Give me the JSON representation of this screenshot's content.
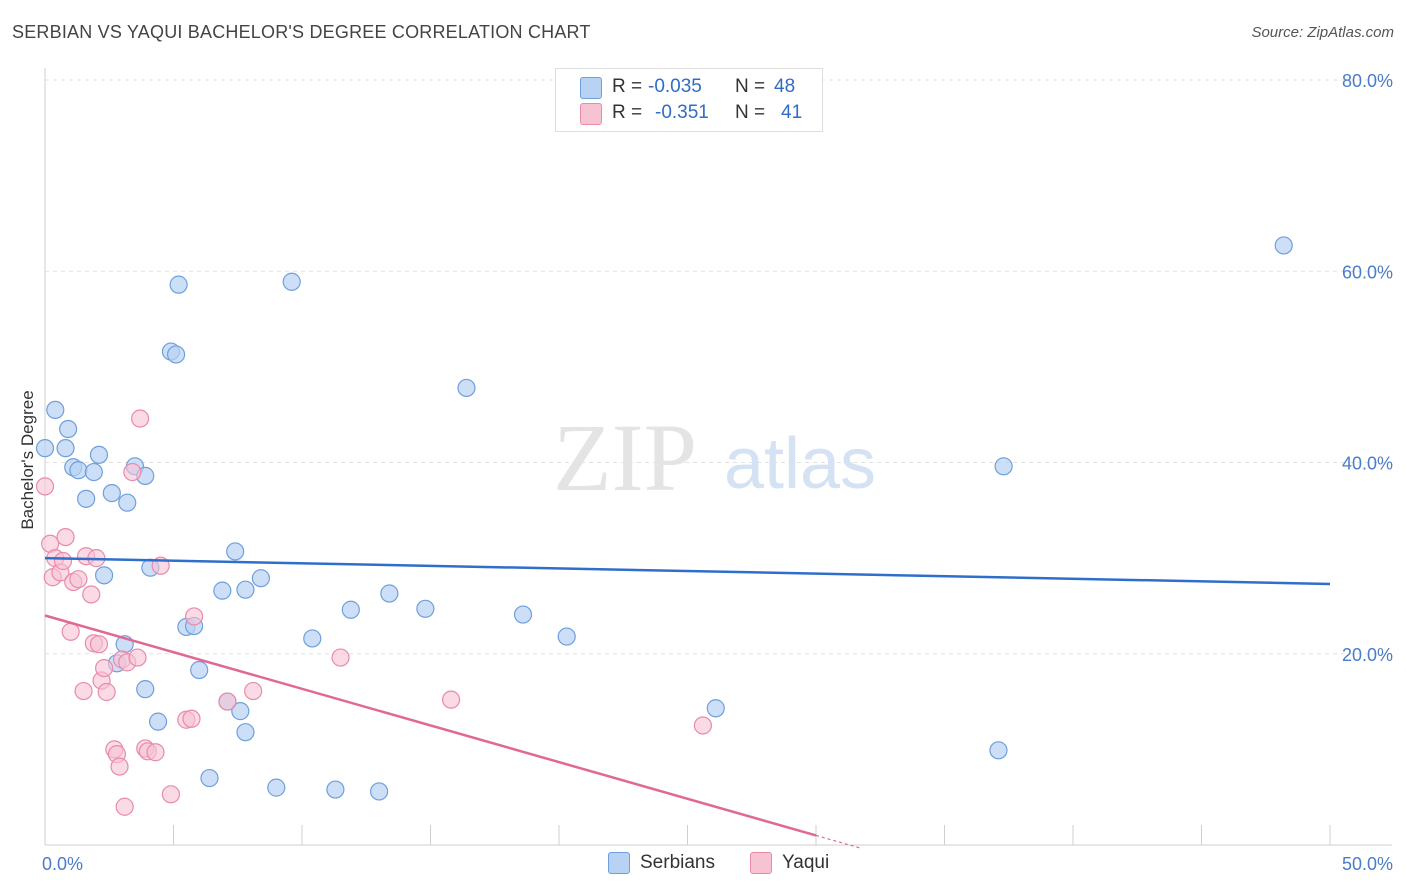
{
  "title": "SERBIAN VS YAQUI BACHELOR'S DEGREE CORRELATION CHART",
  "source": "Source: ZipAtlas.com",
  "watermark": {
    "zip": "ZIP",
    "atlas": "atlas"
  },
  "colors": {
    "serbians_fill": "#b8d2f4",
    "serbians_stroke": "#6f9fdc",
    "serbians_line": "#2f6fcb",
    "yaqui_fill": "#f7c3d3",
    "yaqui_stroke": "#e98aa9",
    "yaqui_line": "#e06894",
    "tick_text": "#4a7cc7"
  },
  "legend": {
    "serbians": {
      "r_label": "R =",
      "r_value": "-0.035",
      "n_label": "N =",
      "n_value": "48"
    },
    "yaqui": {
      "r_label": "R =",
      "r_value": "-0.351",
      "n_label": "N =",
      "n_value": "41"
    }
  },
  "chart_data": {
    "type": "scatter",
    "title": "SERBIAN VS YAQUI BACHELOR'S DEGREE CORRELATION CHART",
    "xlabel": "",
    "ylabel": "Bachelor's Degree",
    "xlim": [
      0,
      50
    ],
    "ylim": [
      0,
      80
    ],
    "x_tick_labels": {
      "min": "0.0%",
      "max": "50.0%"
    },
    "y_ticks": [
      {
        "value": 20,
        "label": "20.0%"
      },
      {
        "value": 40,
        "label": "40.0%"
      },
      {
        "value": 60,
        "label": "60.0%"
      },
      {
        "value": 80,
        "label": "80.0%"
      }
    ],
    "series": [
      {
        "name": "Serbians",
        "trend": {
          "x0": 0,
          "y0": 30.0,
          "x1": 50,
          "y1": 27.3
        },
        "points": [
          [
            0.0,
            41.5
          ],
          [
            0.4,
            45.5
          ],
          [
            0.8,
            41.5
          ],
          [
            0.9,
            43.5
          ],
          [
            1.1,
            39.5
          ],
          [
            1.3,
            39.2
          ],
          [
            1.6,
            36.2
          ],
          [
            1.9,
            39.0
          ],
          [
            2.1,
            40.8
          ],
          [
            2.3,
            28.2
          ],
          [
            2.6,
            36.8
          ],
          [
            2.8,
            19.0
          ],
          [
            3.2,
            35.8
          ],
          [
            3.1,
            21.0
          ],
          [
            3.5,
            39.6
          ],
          [
            3.9,
            38.6
          ],
          [
            3.9,
            16.3
          ],
          [
            4.1,
            29.0
          ],
          [
            4.4,
            12.9
          ],
          [
            4.9,
            51.6
          ],
          [
            5.1,
            51.3
          ],
          [
            5.2,
            58.6
          ],
          [
            5.5,
            22.8
          ],
          [
            5.8,
            22.9
          ],
          [
            6.0,
            18.3
          ],
          [
            6.4,
            7.0
          ],
          [
            6.9,
            26.6
          ],
          [
            7.1,
            15.0
          ],
          [
            7.4,
            30.7
          ],
          [
            7.6,
            14.0
          ],
          [
            7.8,
            11.8
          ],
          [
            7.8,
            26.7
          ],
          [
            8.4,
            27.9
          ],
          [
            9.0,
            6.0
          ],
          [
            9.6,
            58.9
          ],
          [
            10.4,
            21.6
          ],
          [
            11.3,
            5.8
          ],
          [
            11.9,
            24.6
          ],
          [
            13.0,
            5.6
          ],
          [
            13.4,
            26.3
          ],
          [
            14.8,
            24.7
          ],
          [
            16.4,
            47.8
          ],
          [
            18.6,
            24.1
          ],
          [
            20.3,
            21.8
          ],
          [
            26.1,
            14.3
          ],
          [
            37.1,
            9.9
          ],
          [
            37.3,
            39.6
          ],
          [
            48.2,
            62.7
          ]
        ]
      },
      {
        "name": "Yaqui",
        "trend": {
          "x0": 0,
          "y0": 24.0,
          "x1": 30.0,
          "y1": 1.0,
          "dash_x1": 31.7,
          "dash_y1": -0.3
        },
        "points": [
          [
            0.0,
            37.5
          ],
          [
            0.2,
            31.5
          ],
          [
            0.3,
            28.0
          ],
          [
            0.4,
            30.0
          ],
          [
            0.6,
            28.5
          ],
          [
            0.7,
            29.7
          ],
          [
            0.8,
            32.2
          ],
          [
            1.0,
            22.3
          ],
          [
            1.1,
            27.5
          ],
          [
            1.3,
            27.8
          ],
          [
            1.5,
            16.1
          ],
          [
            1.6,
            30.2
          ],
          [
            1.8,
            26.2
          ],
          [
            1.9,
            21.1
          ],
          [
            2.0,
            30.0
          ],
          [
            2.1,
            21.0
          ],
          [
            2.2,
            17.2
          ],
          [
            2.3,
            18.5
          ],
          [
            2.4,
            16.0
          ],
          [
            2.7,
            10.0
          ],
          [
            2.8,
            9.5
          ],
          [
            2.9,
            8.2
          ],
          [
            3.0,
            19.4
          ],
          [
            3.1,
            4.0
          ],
          [
            3.2,
            19.1
          ],
          [
            3.4,
            39.0
          ],
          [
            3.6,
            19.6
          ],
          [
            3.7,
            44.6
          ],
          [
            3.9,
            10.1
          ],
          [
            4.0,
            9.8
          ],
          [
            4.3,
            9.7
          ],
          [
            4.5,
            29.2
          ],
          [
            4.9,
            5.3
          ],
          [
            5.5,
            13.1
          ],
          [
            5.7,
            13.2
          ],
          [
            5.8,
            23.9
          ],
          [
            7.1,
            15.0
          ],
          [
            8.1,
            16.1
          ],
          [
            11.5,
            19.6
          ],
          [
            15.8,
            15.2
          ],
          [
            25.6,
            12.5
          ]
        ]
      }
    ]
  }
}
